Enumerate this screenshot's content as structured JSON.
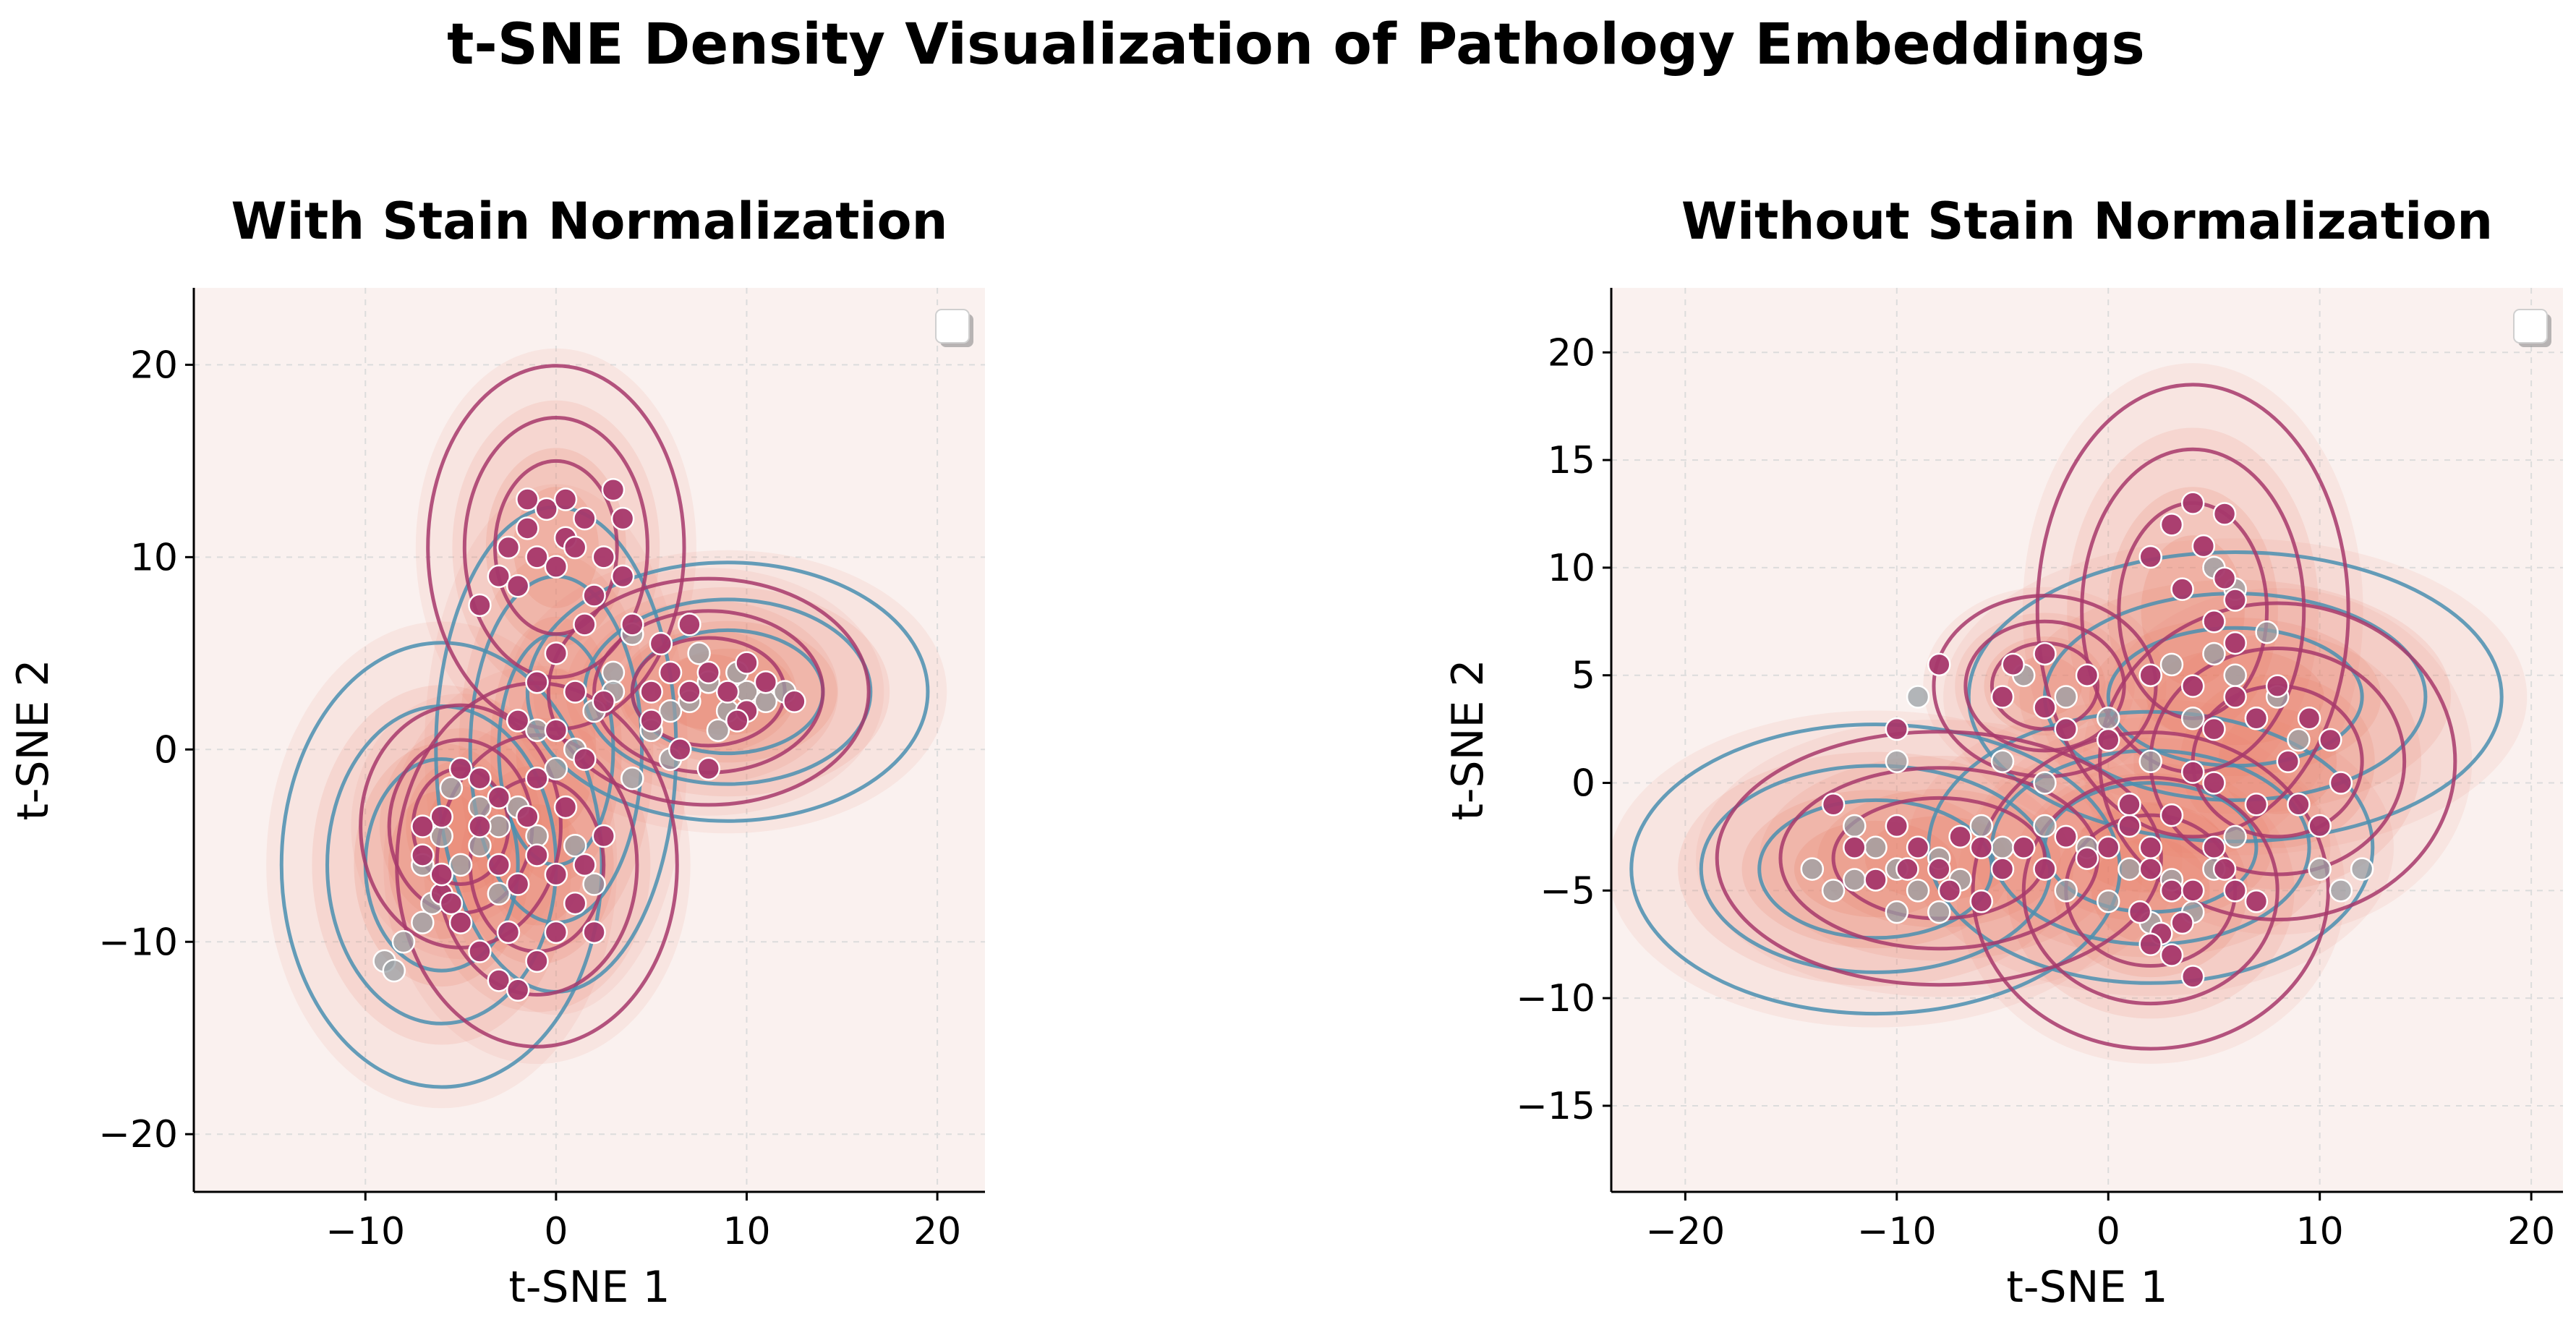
{
  "title": "t-SNE Density Visualization of Pathology Embeddings",
  "colors": {
    "background": "#faf1ef",
    "group_a": "#a7386b",
    "group_b": "#4a8fb0",
    "point_grey": "#9aa0a6",
    "density_fill": "#e8806a"
  },
  "chart_data": [
    {
      "type": "scatter",
      "title": "With Stain Normalization",
      "xlabel": "t-SNE 1",
      "ylabel": "t-SNE 2",
      "xlim": [
        -19,
        22.5
      ],
      "ylim": [
        -23,
        24
      ],
      "xticks": [
        -10,
        0,
        10,
        20
      ],
      "yticks": [
        -20,
        -10,
        0,
        10,
        20
      ],
      "xtick_labels": [
        "−10",
        "0",
        "10",
        "20"
      ],
      "ytick_labels": [
        "−20",
        "−10",
        "0",
        "10",
        "20"
      ],
      "grid": true,
      "legend": "top-right",
      "series": [
        {
          "values_xy": [
            [
              -1.5,
              11.5
            ],
            [
              -0.5,
              12.5
            ],
            [
              0.5,
              11
            ],
            [
              -1,
              10
            ],
            [
              0,
              9.5
            ],
            [
              1,
              10.5
            ],
            [
              -2.5,
              10.5
            ],
            [
              -3,
              9
            ],
            [
              -2,
              8.5
            ],
            [
              1.5,
              12
            ],
            [
              2.5,
              10
            ],
            [
              0.5,
              13
            ],
            [
              -1.5,
              13
            ],
            [
              3,
              13.5
            ],
            [
              3.5,
              12
            ],
            [
              2,
              8
            ],
            [
              3.5,
              9
            ],
            [
              -4,
              7.5
            ],
            [
              1.5,
              6.5
            ],
            [
              4,
              6.5
            ],
            [
              0,
              5
            ],
            [
              -1,
              3.5
            ],
            [
              1,
              3
            ],
            [
              2.5,
              2.5
            ],
            [
              -2,
              1.5
            ],
            [
              0,
              1
            ],
            [
              1.5,
              -0.5
            ],
            [
              -1,
              -1.5
            ],
            [
              0.5,
              -3
            ],
            [
              5,
              3
            ],
            [
              6,
              4
            ],
            [
              7,
              3
            ],
            [
              8,
              4
            ],
            [
              9,
              3
            ],
            [
              10,
              2
            ],
            [
              11,
              3.5
            ],
            [
              12.5,
              2.5
            ],
            [
              7,
              6.5
            ],
            [
              5.5,
              5.5
            ],
            [
              9.5,
              1.5
            ],
            [
              6.5,
              0
            ],
            [
              8,
              -1
            ],
            [
              5,
              1.5
            ],
            [
              10,
              4.5
            ],
            [
              -5,
              -1
            ],
            [
              -6,
              -3.5
            ],
            [
              -7,
              -5.5
            ],
            [
              -6,
              -7.5
            ],
            [
              -5,
              -9
            ],
            [
              -4,
              -10.5
            ],
            [
              -3,
              -12
            ],
            [
              -2,
              -12.5
            ],
            [
              -1,
              -11
            ],
            [
              0,
              -9.5
            ],
            [
              1,
              -8
            ],
            [
              2,
              -9.5
            ],
            [
              -2,
              -7
            ],
            [
              -3,
              -6
            ],
            [
              -4,
              -4
            ],
            [
              -3,
              -2.5
            ],
            [
              -6,
              -6.5
            ],
            [
              -7,
              -4
            ],
            [
              -1,
              -5.5
            ],
            [
              0,
              -6.5
            ],
            [
              1.5,
              -6
            ],
            [
              2.5,
              -4.5
            ],
            [
              -5.5,
              -8
            ],
            [
              -2.5,
              -9.5
            ],
            [
              -1.5,
              -3.5
            ],
            [
              -4,
              -1.5
            ]
          ]
        },
        {
          "values_xy": [
            [
              -9,
              -11
            ],
            [
              -8,
              -10
            ],
            [
              -7,
              -9
            ],
            [
              -8.5,
              -11.5
            ],
            [
              -6.5,
              -8
            ],
            [
              -5,
              -6
            ],
            [
              -4,
              -5
            ],
            [
              -3,
              -4
            ],
            [
              -6,
              -4.5
            ],
            [
              -7,
              -6
            ],
            [
              -5.5,
              -2
            ],
            [
              -4,
              -3
            ],
            [
              -2,
              -3
            ],
            [
              -1,
              -4.5
            ],
            [
              1,
              -5
            ],
            [
              2,
              -7
            ],
            [
              -3,
              -7.5
            ],
            [
              6,
              2
            ],
            [
              7,
              2.5
            ],
            [
              8,
              3.5
            ],
            [
              9,
              2
            ],
            [
              10,
              3
            ],
            [
              11,
              2.5
            ],
            [
              12,
              3
            ],
            [
              9.5,
              4
            ],
            [
              8.5,
              1
            ],
            [
              7.5,
              5
            ],
            [
              4,
              6
            ],
            [
              3,
              4
            ],
            [
              2,
              2
            ],
            [
              1,
              0
            ],
            [
              0,
              -1
            ],
            [
              -1,
              1
            ],
            [
              3,
              3
            ],
            [
              5,
              1
            ],
            [
              6,
              -0.5
            ],
            [
              4,
              -1.5
            ]
          ]
        }
      ]
    },
    {
      "type": "scatter",
      "title": "Without Stain Normalization",
      "xlabel": "t-SNE 1",
      "ylabel": "t-SNE 2",
      "xlim": [
        -23.5,
        21.5
      ],
      "ylim": [
        -19,
        23
      ],
      "xticks": [
        -20,
        -10,
        0,
        10,
        20
      ],
      "yticks": [
        -15,
        -10,
        -5,
        0,
        5,
        10,
        15,
        20
      ],
      "xtick_labels": [
        "−20",
        "−10",
        "0",
        "10",
        "20"
      ],
      "ytick_labels": [
        "−15",
        "−10",
        "−5",
        "0",
        "5",
        "10",
        "15",
        "20"
      ],
      "grid": true,
      "legend": "top-right",
      "series": [
        {
          "values_xy": [
            [
              4,
              13
            ],
            [
              5.5,
              12.5
            ],
            [
              3,
              12
            ],
            [
              4.5,
              11
            ],
            [
              2,
              10.5
            ],
            [
              5.5,
              9.5
            ],
            [
              6,
              8.5
            ],
            [
              3.5,
              9
            ],
            [
              5,
              7.5
            ],
            [
              6,
              6.5
            ],
            [
              2,
              5
            ],
            [
              4,
              4.5
            ],
            [
              6,
              4
            ],
            [
              8,
              4.5
            ],
            [
              9.5,
              3
            ],
            [
              10.5,
              2
            ],
            [
              7,
              3
            ],
            [
              5,
              2.5
            ],
            [
              8.5,
              1
            ],
            [
              9,
              -1
            ],
            [
              10,
              -2
            ],
            [
              11,
              0
            ],
            [
              7,
              -1
            ],
            [
              5,
              0
            ],
            [
              -1,
              5
            ],
            [
              -3,
              6
            ],
            [
              -4.5,
              5.5
            ],
            [
              -3,
              3.5
            ],
            [
              -2,
              2.5
            ],
            [
              -5,
              4
            ],
            [
              -8,
              5.5
            ],
            [
              -10,
              2.5
            ],
            [
              -13,
              -1
            ],
            [
              -12,
              -3
            ],
            [
              -10,
              -2
            ],
            [
              -9,
              -3
            ],
            [
              -8,
              -4
            ],
            [
              -7,
              -2.5
            ],
            [
              -6,
              -3
            ],
            [
              -5,
              -4
            ],
            [
              -4,
              -3
            ],
            [
              -3,
              -4
            ],
            [
              -2,
              -2.5
            ],
            [
              -1,
              -3.5
            ],
            [
              0,
              -3
            ],
            [
              1,
              -2
            ],
            [
              2,
              -4
            ],
            [
              3,
              -5
            ],
            [
              1.5,
              -6
            ],
            [
              2.5,
              -7
            ],
            [
              3.5,
              -6.5
            ],
            [
              4,
              -5
            ],
            [
              5,
              -3
            ],
            [
              6,
              -5
            ],
            [
              7,
              -5.5
            ],
            [
              3,
              -8
            ],
            [
              2,
              -7.5
            ],
            [
              4,
              -9
            ],
            [
              -11,
              -4.5
            ],
            [
              -9.5,
              -4
            ],
            [
              -7.5,
              -5
            ],
            [
              -6,
              -5.5
            ],
            [
              1,
              -1
            ],
            [
              3,
              -1.5
            ],
            [
              5.5,
              -4
            ],
            [
              0,
              2
            ],
            [
              4,
              0.5
            ],
            [
              2,
              -3
            ]
          ]
        },
        {
          "values_xy": [
            [
              -14,
              -4
            ],
            [
              -13,
              -5
            ],
            [
              -12,
              -4.5
            ],
            [
              -11,
              -3
            ],
            [
              -10,
              -4
            ],
            [
              -9,
              -5
            ],
            [
              -8,
              -3.5
            ],
            [
              -7,
              -4.5
            ],
            [
              -6,
              -2
            ],
            [
              -12,
              -2
            ],
            [
              -10,
              -6
            ],
            [
              -8,
              -6
            ],
            [
              -5,
              -3
            ],
            [
              -3,
              -2
            ],
            [
              -1,
              -3
            ],
            [
              -2,
              -5
            ],
            [
              1,
              -4
            ],
            [
              0,
              -5.5
            ],
            [
              2,
              -6.5
            ],
            [
              3,
              -4.5
            ],
            [
              4,
              -6
            ],
            [
              5,
              -4
            ],
            [
              6,
              -2.5
            ],
            [
              7,
              3
            ],
            [
              8,
              4
            ],
            [
              6,
              5
            ],
            [
              5,
              6
            ],
            [
              4,
              3
            ],
            [
              3,
              5.5
            ],
            [
              9,
              2
            ],
            [
              10,
              -4
            ],
            [
              11,
              -5
            ],
            [
              12,
              -4
            ],
            [
              -4,
              5
            ],
            [
              -2,
              4
            ],
            [
              0,
              3
            ],
            [
              2,
              1
            ],
            [
              1,
              -1
            ],
            [
              -9,
              4
            ],
            [
              -10,
              1
            ],
            [
              6,
              9
            ],
            [
              7.5,
              7
            ],
            [
              5,
              10
            ],
            [
              -3,
              0
            ],
            [
              -5,
              1
            ]
          ]
        }
      ]
    }
  ]
}
